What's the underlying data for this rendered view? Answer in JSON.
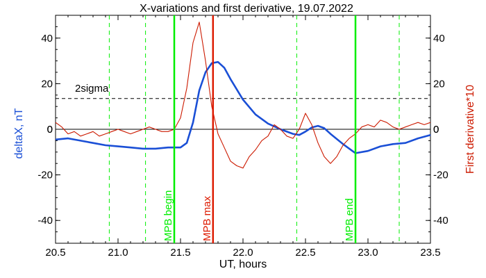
{
  "chart_data": {
    "type": "line",
    "title": "X-variations and first derivative, 19.07.2022",
    "xlabel": "UT, hours",
    "ylabel_left": "deltaX, nT",
    "ylabel_right": "First derivative*10",
    "xlim": [
      20.5,
      23.5
    ],
    "ylim": [
      -50,
      50
    ],
    "xticks": [
      "20.5",
      "21.0",
      "21.5",
      "22.0",
      "22.5",
      "23.0",
      "23.5"
    ],
    "yticks": [
      "-40",
      "-20",
      "0",
      "20",
      "40"
    ],
    "colors": {
      "deltaX": "#1a4fd6",
      "derivative": "#cc1a00",
      "mpb_markers": "#00ee00",
      "max_marker": "#dd1a00",
      "threshold": "#000000"
    },
    "threshold": {
      "value": 13.5,
      "label": "2sigma"
    },
    "zero_line": 0,
    "dashed_green_lines": [
      20.93,
      21.22,
      22.43,
      23.25
    ],
    "markers": [
      {
        "x": 21.45,
        "label": "MPB begin",
        "color": "#00ee00"
      },
      {
        "x": 21.76,
        "label": "MPB max",
        "color": "#dd1a00"
      },
      {
        "x": 22.9,
        "label": "MPB end",
        "color": "#00ee00"
      }
    ],
    "series": [
      {
        "key": "deltaX",
        "x": [
          20.5,
          20.6,
          20.7,
          20.8,
          20.9,
          21.0,
          21.1,
          21.2,
          21.3,
          21.4,
          21.5,
          21.55,
          21.6,
          21.65,
          21.7,
          21.75,
          21.8,
          21.85,
          21.9,
          22.0,
          22.1,
          22.2,
          22.3,
          22.4,
          22.45,
          22.5,
          22.55,
          22.6,
          22.65,
          22.7,
          22.8,
          22.9,
          23.0,
          23.1,
          23.2,
          23.3,
          23.4,
          23.5
        ],
        "y": [
          -4.5,
          -4.0,
          -5.0,
          -6.0,
          -7.0,
          -7.5,
          -8.0,
          -8.5,
          -8.5,
          -8.0,
          -8.0,
          -6.0,
          3.0,
          17.0,
          25.0,
          29.0,
          29.5,
          27.0,
          22.0,
          13.0,
          6.5,
          2.5,
          0.0,
          -2.0,
          -2.5,
          -1.0,
          0.8,
          1.5,
          0.5,
          -2.0,
          -6.5,
          -10.5,
          -9.5,
          -7.5,
          -6.5,
          -6.0,
          -4.0,
          -2.5
        ]
      },
      {
        "key": "derivative",
        "x": [
          20.5,
          20.55,
          20.6,
          20.65,
          20.7,
          20.75,
          20.8,
          20.85,
          20.9,
          20.95,
          21.0,
          21.05,
          21.1,
          21.15,
          21.2,
          21.25,
          21.3,
          21.35,
          21.4,
          21.45,
          21.5,
          21.55,
          21.6,
          21.65,
          21.7,
          21.75,
          21.8,
          21.85,
          21.9,
          21.95,
          22.0,
          22.05,
          22.1,
          22.15,
          22.2,
          22.25,
          22.3,
          22.35,
          22.4,
          22.45,
          22.5,
          22.55,
          22.6,
          22.65,
          22.7,
          22.75,
          22.8,
          22.85,
          22.9,
          22.95,
          23.0,
          23.05,
          23.1,
          23.15,
          23.2,
          23.25,
          23.3,
          23.35,
          23.4,
          23.45,
          23.5
        ],
        "y": [
          3,
          1,
          -2,
          -1,
          -3,
          -2,
          -1,
          -3,
          -2,
          -1,
          0,
          -1,
          -2,
          -1,
          0,
          1,
          0,
          -1,
          -1,
          0,
          5,
          18,
          38,
          47,
          30,
          10,
          -2,
          -8,
          -14,
          -16,
          -17,
          -12,
          -9,
          -5,
          -3,
          2,
          0,
          -3,
          -4,
          0,
          7,
          2,
          -6,
          -12,
          -15,
          -12,
          -7,
          -4,
          -2,
          1,
          2,
          1,
          4,
          3,
          1,
          0,
          1,
          2,
          3,
          2,
          3
        ]
      }
    ]
  }
}
